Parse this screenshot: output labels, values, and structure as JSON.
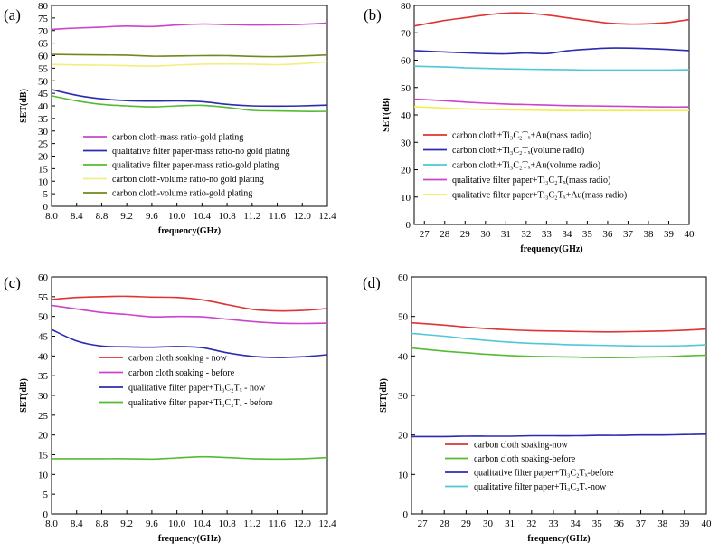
{
  "chart_data": [
    {
      "panel": "(a)",
      "type": "line",
      "xlabel": "frequency(GHz)",
      "ylabel": "SET(dB)",
      "xlim": [
        8.0,
        12.4
      ],
      "ylim": [
        0,
        80
      ],
      "xticks": [
        "8.0",
        "8.4",
        "8.8",
        "9.2",
        "9.6",
        "10.0",
        "10.4",
        "10.8",
        "11.2",
        "11.6",
        "12.0",
        "12.4"
      ],
      "yticks": [
        "0",
        "5",
        "10",
        "15",
        "20",
        "25",
        "30",
        "35",
        "40",
        "45",
        "50",
        "55",
        "60",
        "65",
        "70",
        "75",
        "80"
      ],
      "legend": "lower-left",
      "series": [
        {
          "name": "carbon cloth-mass ratio-gold plating",
          "color": "#cc44cc",
          "x": [
            8.0,
            8.4,
            8.8,
            9.2,
            9.6,
            10.0,
            10.4,
            10.8,
            11.2,
            11.6,
            12.0,
            12.4
          ],
          "y": [
            70.5,
            71.0,
            71.4,
            71.8,
            71.6,
            72.2,
            72.6,
            72.4,
            72.2,
            72.3,
            72.5,
            73.0
          ]
        },
        {
          "name": "qualitative filter paper-mass ratio-no gold plating",
          "color": "#2b2bb0",
          "x": [
            8.0,
            8.4,
            8.8,
            9.2,
            9.6,
            10.0,
            10.4,
            10.8,
            11.2,
            11.6,
            12.0,
            12.4
          ],
          "y": [
            46.5,
            44.2,
            42.8,
            42.1,
            41.9,
            42.0,
            41.7,
            40.6,
            40.0,
            39.9,
            40.0,
            40.3
          ]
        },
        {
          "name": "qualitative filter paper-mass ratio-gold plating",
          "color": "#55bb33",
          "x": [
            8.0,
            8.4,
            8.8,
            9.2,
            9.6,
            10.0,
            10.4,
            10.8,
            11.2,
            11.6,
            12.0,
            12.4
          ],
          "y": [
            44.0,
            42.0,
            40.6,
            40.0,
            39.6,
            40.0,
            40.2,
            39.4,
            38.2,
            38.0,
            37.8,
            37.8
          ]
        },
        {
          "name": "carbon cloth-volume ratio-no gold plating",
          "color": "#f2ee80",
          "x": [
            8.0,
            8.4,
            8.8,
            9.2,
            9.6,
            10.0,
            10.4,
            10.8,
            11.2,
            11.6,
            12.0,
            12.4
          ],
          "y": [
            56.5,
            56.3,
            56.2,
            56.0,
            55.8,
            56.2,
            56.6,
            56.7,
            56.6,
            56.4,
            56.8,
            57.6
          ]
        },
        {
          "name": "carbon cloth-volume ratio-gold plating",
          "color": "#6e8a1e",
          "x": [
            8.0,
            8.4,
            8.8,
            9.2,
            9.6,
            10.0,
            10.4,
            10.8,
            11.2,
            11.6,
            12.0,
            12.4
          ],
          "y": [
            60.5,
            60.4,
            60.3,
            60.2,
            59.8,
            59.9,
            60.0,
            60.0,
            59.7,
            59.6,
            59.9,
            60.3
          ]
        }
      ]
    },
    {
      "panel": "(b)",
      "type": "line",
      "xlabel": "frequency(GHz)",
      "ylabel": "SET(dB)",
      "xlim": [
        26.5,
        40
      ],
      "ylim": [
        0,
        80
      ],
      "xticks": [
        "27",
        "28",
        "29",
        "30",
        "31",
        "32",
        "33",
        "34",
        "35",
        "36",
        "37",
        "38",
        "39",
        "40"
      ],
      "yticks": [
        "0",
        "10",
        "20",
        "30",
        "40",
        "50",
        "60",
        "70",
        "80"
      ],
      "legend": "lower-left",
      "series": [
        {
          "name": "carbon cloth+Ti₃C₂Tₓ+Au(mass radio)",
          "color": "#e03333",
          "x": [
            26.5,
            28,
            29,
            30,
            31,
            32,
            33,
            34,
            35,
            36,
            37,
            38,
            39,
            40
          ],
          "y": [
            72.5,
            74.5,
            75.5,
            76.5,
            77.2,
            77.2,
            76.5,
            75.5,
            74.5,
            73.6,
            73.2,
            73.3,
            73.8,
            74.8
          ]
        },
        {
          "name": "carbon cloth+Ti₃C₂Tₓ(volume radio)",
          "color": "#2b2bb0",
          "x": [
            26.5,
            28,
            29,
            30,
            31,
            32,
            33,
            34,
            35,
            36,
            37,
            38,
            39,
            40
          ],
          "y": [
            63.5,
            63.0,
            62.7,
            62.4,
            62.3,
            62.6,
            62.4,
            63.4,
            64.0,
            64.4,
            64.4,
            64.2,
            63.9,
            63.5
          ]
        },
        {
          "name": "carbon cloth+Ti₃C₂Tₓ+Au(volume radio)",
          "color": "#4cc8d8",
          "x": [
            26.5,
            28,
            29,
            30,
            31,
            32,
            33,
            34,
            35,
            36,
            37,
            38,
            39,
            40
          ],
          "y": [
            57.8,
            57.5,
            57.2,
            57.0,
            56.8,
            56.7,
            56.6,
            56.5,
            56.4,
            56.4,
            56.4,
            56.4,
            56.4,
            56.5
          ]
        },
        {
          "name": "qualitative filter paper+Ti₃C₂Tₓ(mass radio)",
          "color": "#cc44cc",
          "x": [
            26.5,
            28,
            29,
            30,
            31,
            32,
            33,
            34,
            35,
            36,
            37,
            38,
            39,
            40
          ],
          "y": [
            45.8,
            45.2,
            44.7,
            44.3,
            44.0,
            43.8,
            43.6,
            43.4,
            43.3,
            43.2,
            43.1,
            43.0,
            42.9,
            42.9
          ]
        },
        {
          "name": "qualitative filter paper+Ti₃C₂Tₓ+Au(mass radio)",
          "color": "#f2ee50",
          "x": [
            26.5,
            28,
            29,
            30,
            31,
            32,
            33,
            34,
            35,
            36,
            37,
            38,
            39,
            40
          ],
          "y": [
            43.0,
            42.5,
            42.2,
            42.0,
            41.9,
            41.8,
            41.7,
            41.6,
            41.6,
            41.6,
            41.6,
            41.6,
            41.6,
            41.6
          ]
        }
      ]
    },
    {
      "panel": "(c)",
      "type": "line",
      "xlabel": "frequency(GHz)",
      "ylabel": "SET(dB)",
      "xlim": [
        8.0,
        12.4
      ],
      "ylim": [
        0,
        60
      ],
      "xticks": [
        "8.0",
        "8.4",
        "8.8",
        "9.2",
        "9.6",
        "10.0",
        "10.4",
        "10.8",
        "11.2",
        "11.6",
        "12.0",
        "12.4"
      ],
      "yticks": [
        "0",
        "5",
        "10",
        "15",
        "20",
        "25",
        "30",
        "35",
        "40",
        "45",
        "50",
        "55",
        "60"
      ],
      "legend": "center-left",
      "series": [
        {
          "name": "carbon cloth soaking - now",
          "color": "#e03333",
          "x": [
            8.0,
            8.4,
            8.8,
            9.2,
            9.6,
            10.0,
            10.4,
            10.8,
            11.2,
            11.6,
            12.0,
            12.4
          ],
          "y": [
            54.3,
            54.8,
            55.0,
            55.1,
            54.9,
            54.8,
            54.2,
            53.0,
            51.8,
            51.4,
            51.5,
            52.0
          ]
        },
        {
          "name": "carbon cloth soaking - before",
          "color": "#cc44cc",
          "x": [
            8.0,
            8.4,
            8.8,
            9.2,
            9.6,
            10.0,
            10.4,
            10.8,
            11.2,
            11.6,
            12.0,
            12.4
          ],
          "y": [
            52.8,
            51.9,
            51.0,
            50.5,
            49.9,
            50.0,
            49.9,
            49.3,
            48.7,
            48.3,
            48.2,
            48.3
          ]
        },
        {
          "name": "qualitative filter paper+Ti₃C₂Tₓ - now",
          "color": "#2b2bb0",
          "x": [
            8.0,
            8.4,
            8.8,
            9.2,
            9.6,
            10.0,
            10.4,
            10.8,
            11.2,
            11.6,
            12.0,
            12.4
          ],
          "y": [
            46.7,
            43.8,
            42.5,
            42.3,
            42.2,
            42.4,
            42.1,
            40.8,
            39.9,
            39.6,
            39.8,
            40.3
          ]
        },
        {
          "name": "qualitative filter paper+Ti₃C₂Tₓ - before",
          "color": "#55bb33",
          "x": [
            8.0,
            8.4,
            8.8,
            9.2,
            9.6,
            10.0,
            10.4,
            10.8,
            11.2,
            11.6,
            12.0,
            12.4
          ],
          "y": [
            14.0,
            14.0,
            14.0,
            14.0,
            13.9,
            14.2,
            14.5,
            14.3,
            14.0,
            13.9,
            14.0,
            14.3
          ]
        }
      ]
    },
    {
      "panel": "(d)",
      "type": "line",
      "xlabel": "frequency(GHz)",
      "ylabel": "SET(dB)",
      "xlim": [
        26.5,
        40
      ],
      "ylim": [
        0,
        60
      ],
      "xticks": [
        "27",
        "28",
        "29",
        "30",
        "31",
        "32",
        "33",
        "34",
        "35",
        "36",
        "37",
        "38",
        "39",
        "40"
      ],
      "yticks": [
        "0",
        "10",
        "20",
        "30",
        "40",
        "50",
        "60"
      ],
      "legend": "lower-left",
      "series": [
        {
          "name": "carbon cloth soaking-now",
          "color": "#e03333",
          "x": [
            26.5,
            28,
            29,
            30,
            31,
            32,
            33,
            34,
            35,
            36,
            37,
            38,
            39,
            40
          ],
          "y": [
            48.4,
            47.8,
            47.3,
            46.9,
            46.6,
            46.4,
            46.3,
            46.2,
            46.1,
            46.1,
            46.2,
            46.3,
            46.5,
            46.8
          ]
        },
        {
          "name": "carbon cloth soaking-before",
          "color": "#55bb33",
          "x": [
            26.5,
            28,
            29,
            30,
            31,
            32,
            33,
            34,
            35,
            36,
            37,
            38,
            39,
            40
          ],
          "y": [
            42.0,
            41.2,
            40.8,
            40.4,
            40.1,
            39.9,
            39.8,
            39.7,
            39.6,
            39.6,
            39.7,
            39.8,
            40.0,
            40.2
          ]
        },
        {
          "name": "qualitative filter paper+Ti₃C₂Tₓ-before",
          "color": "#2b2bb0",
          "x": [
            26.5,
            28,
            29,
            30,
            31,
            32,
            33,
            34,
            35,
            36,
            37,
            38,
            39,
            40
          ],
          "y": [
            19.6,
            19.6,
            19.7,
            19.7,
            19.7,
            19.8,
            19.8,
            19.8,
            19.9,
            19.9,
            20.0,
            20.0,
            20.1,
            20.2
          ]
        },
        {
          "name": "qualitative filter paper+Ti₃C₂Tₓ-now",
          "color": "#4cc8d8",
          "x": [
            26.5,
            28,
            29,
            30,
            31,
            32,
            33,
            34,
            35,
            36,
            37,
            38,
            39,
            40
          ],
          "y": [
            45.7,
            45.0,
            44.4,
            43.9,
            43.5,
            43.2,
            43.0,
            42.8,
            42.7,
            42.6,
            42.5,
            42.5,
            42.6,
            42.8
          ]
        }
      ]
    }
  ]
}
